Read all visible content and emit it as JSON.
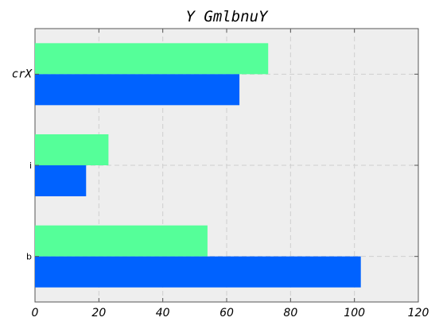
{
  "chart_data": {
    "type": "bar",
    "orientation": "horizontal",
    "title": "Y GmlbnuY",
    "xlabel": "",
    "ylabel": "",
    "categories": [
      "crX",
      "i",
      "b"
    ],
    "series": [
      {
        "values": [
          73,
          23,
          54
        ],
        "color": "#55ff99"
      },
      {
        "values": [
          64,
          16,
          102
        ],
        "color": "#0062ff"
      }
    ],
    "xlim": [
      0,
      120
    ],
    "xticks": [
      0,
      20,
      40,
      60,
      80,
      100,
      120
    ],
    "grid": true,
    "plot_background": "#eeeeee"
  }
}
